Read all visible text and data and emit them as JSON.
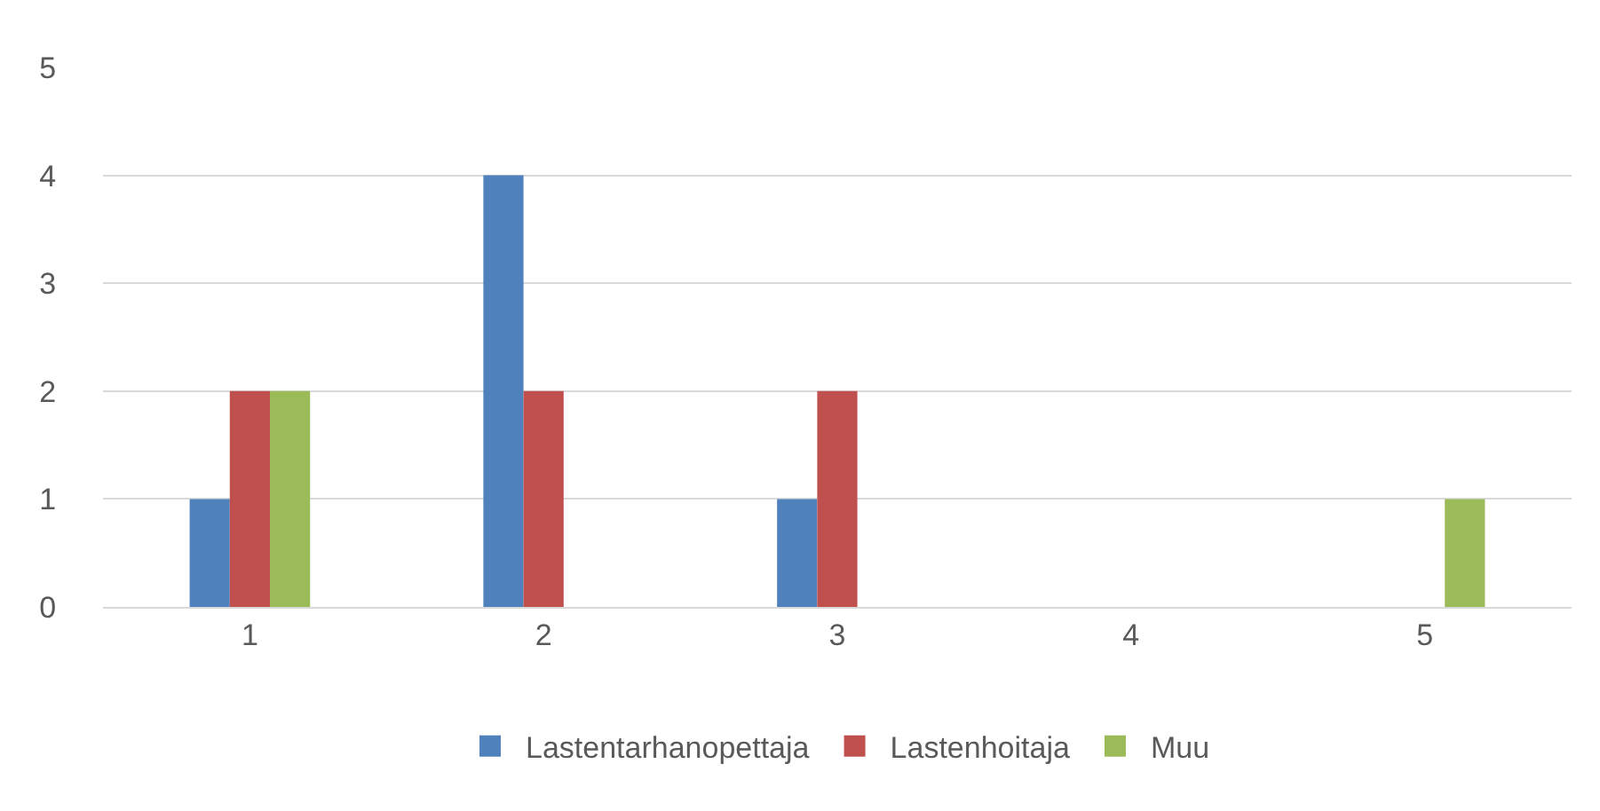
{
  "chart_data": {
    "type": "bar",
    "categories": [
      "1",
      "2",
      "3",
      "4",
      "5"
    ],
    "series": [
      {
        "name": "Lastentarhanopettaja",
        "color": "#4f81bd",
        "values": [
          1,
          4,
          1,
          0,
          0
        ]
      },
      {
        "name": "Lastenhoitaja",
        "color": "#c0504d",
        "values": [
          2,
          2,
          2,
          0,
          0
        ]
      },
      {
        "name": "Muu",
        "color": "#9bbb59",
        "values": [
          2,
          0,
          0,
          0,
          1
        ]
      }
    ],
    "ylim": [
      0,
      5
    ],
    "yticks": [
      0,
      1,
      2,
      3,
      4,
      5
    ],
    "grid": "y",
    "legend": "bottom"
  }
}
